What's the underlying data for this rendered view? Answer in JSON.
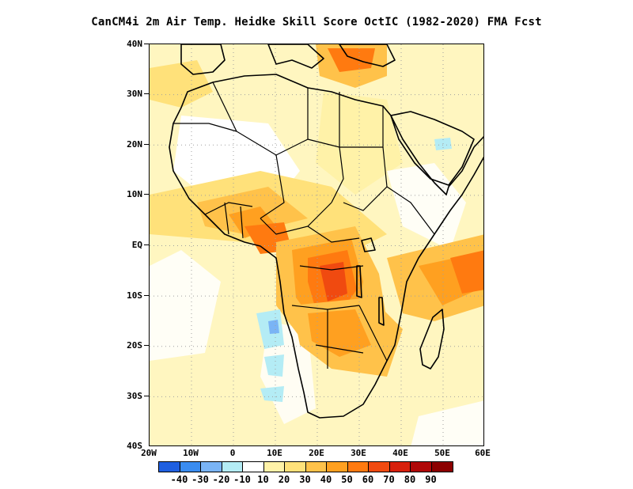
{
  "title": "CanCM4i  2m Air Temp. Heidke Skill Score OctIC (1982-2020) FMA Fcst",
  "map": {
    "region": "Africa",
    "lon_range": [
      -20,
      60
    ],
    "lat_range": [
      -40,
      40
    ],
    "grid": "dotted",
    "lat_ticks": [
      "40N",
      "30N",
      "20N",
      "10N",
      "EQ",
      "10S",
      "20S",
      "30S",
      "40S"
    ],
    "lon_ticks": [
      "20W",
      "10W",
      "0",
      "10E",
      "20E",
      "30E",
      "40E",
      "50E",
      "60E"
    ]
  },
  "colorbar": {
    "colors": [
      "#1f5fe0",
      "#3a8cf0",
      "#7ab4f5",
      "#b4ecf5",
      "#ffffff",
      "#fff2a8",
      "#ffe17a",
      "#ffc24a",
      "#ffa020",
      "#ff7a10",
      "#f04a10",
      "#d8200c",
      "#b00808",
      "#8c0000"
    ],
    "labels": [
      "-40",
      "-30",
      "-20",
      "-10",
      "10",
      "20",
      "30",
      "40",
      "50",
      "60",
      "70",
      "80",
      "90"
    ]
  },
  "colors": {
    "land_outline": "#000000",
    "background": "#ffffff",
    "grid": "#a0a0a0"
  }
}
